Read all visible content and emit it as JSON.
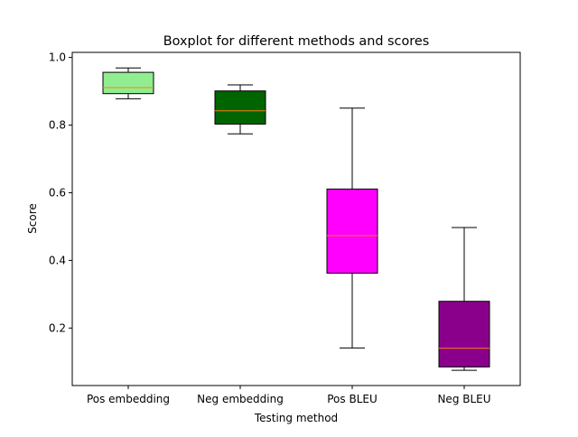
{
  "chart_data": {
    "type": "boxplot",
    "title": "Boxplot for different methods and scores",
    "xlabel": "Testing method",
    "ylabel": "Score",
    "ylim": [
      0.03,
      1.015
    ],
    "yticks": [
      0.2,
      0.4,
      0.6,
      0.8,
      1.0
    ],
    "ytick_labels": [
      "0.2",
      "0.4",
      "0.6",
      "0.8",
      "1.0"
    ],
    "grid": false,
    "categories": [
      "Pos embedding",
      "Neg embedding",
      "Pos BLEU",
      "Neg BLEU"
    ],
    "boxes": [
      {
        "category": "Pos embedding",
        "whisker_low": 0.878,
        "q1": 0.893,
        "median": 0.911,
        "q3": 0.956,
        "whisker_high": 0.969,
        "color": "#90ee90"
      },
      {
        "category": "Neg embedding",
        "whisker_low": 0.774,
        "q1": 0.803,
        "median": 0.842,
        "q3": 0.901,
        "whisker_high": 0.919,
        "color": "#006400"
      },
      {
        "category": "Pos BLEU",
        "whisker_low": 0.141,
        "q1": 0.362,
        "median": 0.473,
        "q3": 0.611,
        "whisker_high": 0.85,
        "color": "#ff00ff"
      },
      {
        "category": "Neg BLEU",
        "whisker_low": 0.075,
        "q1": 0.085,
        "median": 0.14,
        "q3": 0.279,
        "whisker_high": 0.497,
        "color": "#8b008b"
      }
    ],
    "median_color": "#ff7f0e"
  }
}
